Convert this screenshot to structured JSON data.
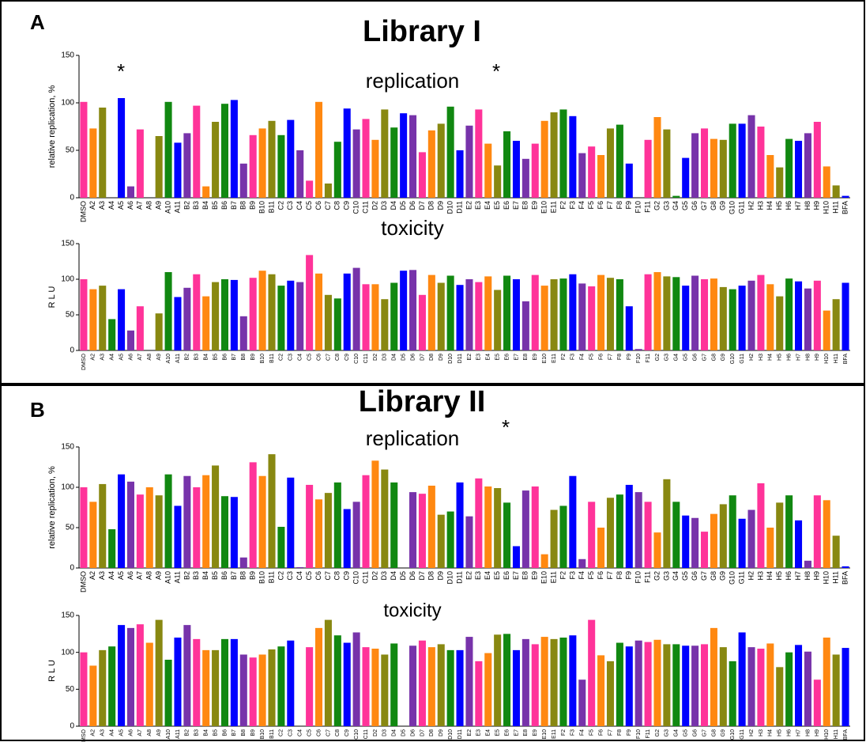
{
  "panels": [
    {
      "letter": "A",
      "title": "Library I"
    },
    {
      "letter": "B",
      "title": "Library II"
    }
  ],
  "bar_colors": [
    "#f39",
    "#f81",
    "#881",
    "#181",
    "#00f",
    "#73a",
    "#f39",
    "#f81",
    "#881",
    "#181",
    "#00f",
    "#73a",
    "#f39",
    "#f81",
    "#881",
    "#181",
    "#00f",
    "#73a",
    "#f39",
    "#f81",
    "#881",
    "#181",
    "#00f",
    "#73a",
    "#f39",
    "#f81",
    "#881",
    "#181",
    "#00f",
    "#73a",
    "#f39",
    "#f81",
    "#881",
    "#181",
    "#00f",
    "#73a",
    "#f39",
    "#f81",
    "#881",
    "#181",
    "#00f",
    "#73a",
    "#f39",
    "#f81",
    "#881",
    "#181",
    "#00f",
    "#73a",
    "#f39",
    "#f81",
    "#881",
    "#181",
    "#00f",
    "#73a",
    "#f39",
    "#f81",
    "#881",
    "#181",
    "#00f",
    "#73a",
    "#f39",
    "#f81",
    "#881",
    "#181",
    "#00f",
    "#73a",
    "#f39",
    "#f81",
    "#881",
    "#181",
    "#00f",
    "#73a",
    "#f39",
    "#f81",
    "#881",
    "#181",
    "#00f",
    "#73a",
    "#f39",
    "#f81",
    "#881",
    "#00f"
  ],
  "chart_data": [
    {
      "type": "bar",
      "title": "replication",
      "ylabel": "relative replication, %",
      "annotations": [
        "*",
        "*"
      ],
      "ylim": [
        0,
        150
      ],
      "yticks": [
        0,
        50,
        100,
        150
      ],
      "categories": [
        "DMSO",
        "A2",
        "A3",
        "A4",
        "A5",
        "A6",
        "A7",
        "A8",
        "A9",
        "A10",
        "A11",
        "B2",
        "B3",
        "B4",
        "B5",
        "B6",
        "B7",
        "B8",
        "B9",
        "B10",
        "B11",
        "C2",
        "C3",
        "C4",
        "C5",
        "C6",
        "C7",
        "C8",
        "C9",
        "C10",
        "C11",
        "D2",
        "D3",
        "D4",
        "D5",
        "D6",
        "D7",
        "D8",
        "D9",
        "D10",
        "D11",
        "E2",
        "E3",
        "E4",
        "E5",
        "E6",
        "E7",
        "E8",
        "E9",
        "E10",
        "E11",
        "F2",
        "F3",
        "F4",
        "F5",
        "F6",
        "F7",
        "F8",
        "F9",
        "F10",
        "F11",
        "G2",
        "G3",
        "G4",
        "G5",
        "G6",
        "G7",
        "G8",
        "G9",
        "G10",
        "G11",
        "H2",
        "H3",
        "H4",
        "H5",
        "H6",
        "H7",
        "H8",
        "H9",
        "H10",
        "H11",
        "BFA"
      ],
      "values": [
        101,
        73,
        95,
        0,
        105,
        12,
        72,
        0,
        65,
        101,
        58,
        68,
        97,
        12,
        80,
        99,
        103,
        36,
        66,
        73,
        81,
        66,
        82,
        50,
        18,
        101,
        15,
        59,
        94,
        72,
        83,
        61,
        93,
        74,
        89,
        87,
        48,
        71,
        78,
        96,
        50,
        76,
        93,
        57,
        34,
        70,
        60,
        41,
        57,
        81,
        90,
        93,
        86,
        47,
        54,
        45,
        73,
        77,
        36,
        0,
        61,
        85,
        72,
        2,
        42,
        68,
        73,
        62,
        61,
        78,
        78,
        87,
        75,
        45,
        32,
        62,
        60,
        68,
        80,
        33,
        13,
        2
      ]
    },
    {
      "type": "bar",
      "title": "toxicity",
      "ylabel": "R L U",
      "ylim": [
        0,
        150
      ],
      "yticks": [
        0,
        50,
        100,
        150
      ],
      "categories": [
        "DMSO",
        "A2",
        "A3",
        "A4",
        "A5",
        "A6",
        "A7",
        "A8",
        "A9",
        "A10",
        "A11",
        "B2",
        "B3",
        "B4",
        "B5",
        "B6",
        "B7",
        "B8",
        "B9",
        "B10",
        "B11",
        "C2",
        "C3",
        "C4",
        "C5",
        "C6",
        "C7",
        "C8",
        "C9",
        "C10",
        "C11",
        "D2",
        "D3",
        "D4",
        "D5",
        "D6",
        "D7",
        "D8",
        "D9",
        "D10",
        "D11",
        "E2",
        "E3",
        "E4",
        "E5",
        "E6",
        "E7",
        "E8",
        "E9",
        "E10",
        "E11",
        "F2",
        "F3",
        "F4",
        "F5",
        "F6",
        "F7",
        "F8",
        "F9",
        "F10",
        "F11",
        "G2",
        "G3",
        "G4",
        "G5",
        "G6",
        "G7",
        "G8",
        "G9",
        "G10",
        "G11",
        "H2",
        "H3",
        "H4",
        "H5",
        "H6",
        "H7",
        "H8",
        "H9",
        "H10",
        "H11",
        "BFA"
      ],
      "values": [
        100,
        86,
        91,
        44,
        86,
        28,
        62,
        0,
        52,
        110,
        75,
        88,
        107,
        76,
        96,
        100,
        99,
        48,
        102,
        112,
        107,
        91,
        98,
        96,
        134,
        108,
        78,
        73,
        108,
        116,
        93,
        93,
        72,
        95,
        112,
        113,
        78,
        106,
        95,
        105,
        92,
        100,
        96,
        104,
        85,
        105,
        100,
        69,
        106,
        91,
        100,
        101,
        107,
        94,
        90,
        106,
        102,
        100,
        62,
        2,
        107,
        110,
        104,
        103,
        91,
        105,
        100,
        101,
        89,
        86,
        91,
        98,
        106,
        93,
        76,
        101,
        97,
        87,
        98,
        56,
        72,
        95
      ]
    },
    {
      "type": "bar",
      "title": "replication",
      "ylabel": "relative replication, %",
      "annotations": [
        "*"
      ],
      "ylim": [
        0,
        150
      ],
      "yticks": [
        0,
        50,
        100,
        150
      ],
      "categories": [
        "DMSO",
        "A2",
        "A3",
        "A4",
        "A5",
        "A6",
        "A7",
        "A8",
        "A9",
        "A10",
        "A11",
        "B2",
        "B3",
        "B4",
        "B5",
        "B6",
        "B7",
        "B8",
        "B9",
        "B10",
        "B11",
        "C2",
        "C3",
        "C4",
        "C5",
        "C6",
        "C7",
        "C8",
        "C9",
        "C10",
        "C11",
        "D2",
        "D3",
        "D4",
        "D5",
        "D6",
        "D7",
        "D8",
        "D9",
        "D10",
        "D11",
        "E2",
        "E3",
        "E4",
        "E5",
        "E6",
        "E7",
        "E8",
        "E9",
        "E10",
        "E11",
        "F2",
        "F3",
        "F4",
        "F5",
        "F6",
        "F7",
        "F8",
        "F9",
        "F10",
        "F11",
        "G2",
        "G3",
        "G4",
        "G5",
        "G6",
        "G7",
        "G8",
        "G9",
        "G10",
        "G11",
        "H2",
        "H3",
        "H4",
        "H5",
        "H6",
        "H7",
        "H8",
        "H9",
        "H10",
        "H11",
        "BFA"
      ],
      "values": [
        100,
        82,
        104,
        48,
        116,
        107,
        91,
        100,
        90,
        116,
        77,
        114,
        100,
        115,
        127,
        89,
        88,
        13,
        131,
        114,
        141,
        51,
        112,
        1,
        103,
        85,
        93,
        106,
        73,
        82,
        115,
        133,
        122,
        106,
        0,
        94,
        92,
        102,
        66,
        70,
        106,
        64,
        111,
        101,
        99,
        81,
        27,
        96,
        101,
        17,
        72,
        77,
        114,
        11,
        82,
        50,
        87,
        91,
        103,
        94,
        82,
        44,
        110,
        82,
        65,
        62,
        45,
        67,
        79,
        90,
        61,
        72,
        105,
        50,
        81,
        90,
        59,
        9,
        90,
        84,
        40,
        2
      ]
    },
    {
      "type": "bar",
      "title": "toxicity",
      "ylabel": "R L U",
      "ylim": [
        0,
        150
      ],
      "yticks": [
        0,
        50,
        100,
        150
      ],
      "categories": [
        "DMSO",
        "A2",
        "A3",
        "A4",
        "A5",
        "A6",
        "A7",
        "A8",
        "A9",
        "A10",
        "A11",
        "B2",
        "B3",
        "B4",
        "B5",
        "B6",
        "B7",
        "B8",
        "B9",
        "B10",
        "B11",
        "C2",
        "C3",
        "C4",
        "C5",
        "C6",
        "C7",
        "C8",
        "C9",
        "C10",
        "C11",
        "D2",
        "D3",
        "D4",
        "D5",
        "D6",
        "D7",
        "D8",
        "D9",
        "D10",
        "D11",
        "E2",
        "E3",
        "E4",
        "E5",
        "E6",
        "E7",
        "E8",
        "E9",
        "E10",
        "E11",
        "F2",
        "F3",
        "F4",
        "F5",
        "F6",
        "F7",
        "F8",
        "F9",
        "F10",
        "F11",
        "G2",
        "G3",
        "G4",
        "G5",
        "G6",
        "G7",
        "G8",
        "G9",
        "G10",
        "G11",
        "H2",
        "H3",
        "H4",
        "H5",
        "H6",
        "H7",
        "H8",
        "H9",
        "H10",
        "H11",
        "BFA"
      ],
      "values": [
        100,
        82,
        103,
        108,
        137,
        133,
        138,
        113,
        144,
        90,
        120,
        137,
        118,
        103,
        103,
        118,
        118,
        97,
        93,
        97,
        104,
        108,
        116,
        0,
        107,
        133,
        144,
        123,
        113,
        127,
        107,
        105,
        97,
        112,
        0,
        109,
        116,
        107,
        111,
        103,
        103,
        121,
        88,
        99,
        124,
        125,
        103,
        118,
        111,
        121,
        118,
        120,
        123,
        63,
        144,
        96,
        88,
        113,
        108,
        116,
        114,
        117,
        111,
        111,
        109,
        109,
        111,
        133,
        107,
        88,
        127,
        107,
        105,
        112,
        80,
        100,
        110,
        101,
        63,
        120,
        97,
        106
      ]
    }
  ]
}
